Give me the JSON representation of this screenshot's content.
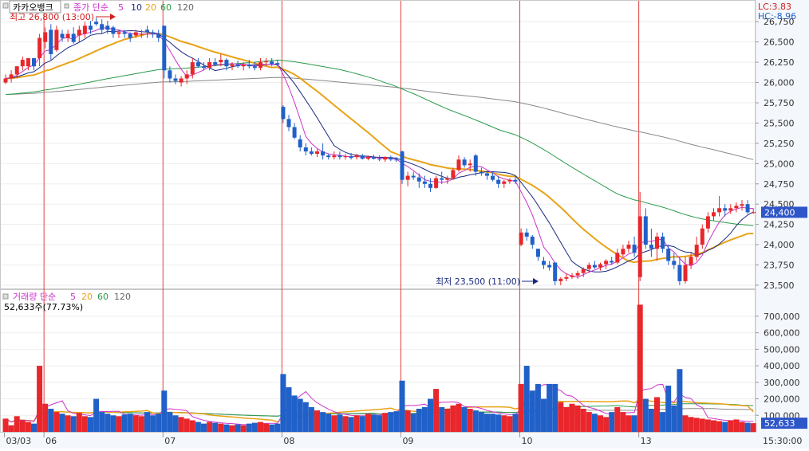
{
  "symbol_name": "카카오뱅크",
  "price_legend": {
    "label": "종가 단순",
    "periods": [
      "5",
      "10",
      "20",
      "60",
      "120"
    ]
  },
  "volume_legend": {
    "label": "거래량 단순",
    "periods": [
      "5",
      "20",
      "60",
      "120"
    ]
  },
  "volume_current_text": "52,633주(77.73%)",
  "lc_text": "LC:3.83",
  "hc_text": "HC:-8.96",
  "high_annotation": "최고 26,800 (13:00)",
  "low_annotation": "최저 23,500 (11:00)",
  "current_price_label": "24,400",
  "current_volume_label": "52,633",
  "time_label": "15:30:00",
  "colors": {
    "up": "#e8262b",
    "down": "#2060c8",
    "ma5": "#cc33cc",
    "ma10": "#1a2a80",
    "ma20": "#e8a317",
    "ma60": "#2a9a4a",
    "ma120": "#888888",
    "session_line": "#e04040",
    "badge": "#2e56c9"
  },
  "chart_data": [
    {
      "type": "candlestick",
      "title": "카카오뱅크",
      "y_ticks": [
        "23,500",
        "23,750",
        "24,000",
        "24,250",
        "24,500",
        "24,750",
        "25,000",
        "25,250",
        "25,500",
        "25,750",
        "26,000",
        "26,250",
        "26,500",
        "26,750"
      ],
      "ylim": [
        23480,
        26880
      ],
      "x_tick_labels": [
        "03/03",
        "06",
        "07",
        "08",
        "09",
        "10",
        "13"
      ],
      "session_start_index": [
        0,
        7,
        28,
        49,
        70,
        91,
        112
      ],
      "current_price": 24400,
      "candles": [
        [
          26000,
          26100,
          25980,
          26050
        ],
        [
          26050,
          26150,
          26000,
          26100
        ],
        [
          26100,
          26200,
          26050,
          26200
        ],
        [
          26200,
          26320,
          26150,
          26280
        ],
        [
          26200,
          26300,
          26150,
          26300
        ],
        [
          26300,
          26300,
          26150,
          26200
        ],
        [
          26300,
          26600,
          26200,
          26550
        ],
        [
          26500,
          26680,
          26420,
          26620
        ],
        [
          26650,
          26720,
          26280,
          26350
        ],
        [
          26400,
          26700,
          26380,
          26650
        ],
        [
          26600,
          26650,
          26500,
          26550
        ],
        [
          26550,
          26650,
          26500,
          26600
        ],
        [
          26600,
          26680,
          26480,
          26500
        ],
        [
          26580,
          26700,
          26500,
          26650
        ],
        [
          26600,
          26750,
          26550,
          26700
        ],
        [
          26700,
          26760,
          26600,
          26650
        ],
        [
          26750,
          26800,
          26700,
          26720
        ],
        [
          26720,
          26780,
          26600,
          26650
        ],
        [
          26700,
          26760,
          26600,
          26650
        ],
        [
          26680,
          26700,
          26550,
          26600
        ],
        [
          26600,
          26650,
          26550,
          26620
        ],
        [
          26620,
          26650,
          26550,
          26600
        ],
        [
          26600,
          26620,
          26500,
          26550
        ],
        [
          26580,
          26650,
          26550,
          26620
        ],
        [
          26600,
          26650,
          26550,
          26600
        ],
        [
          26650,
          26700,
          26550,
          26620
        ],
        [
          26620,
          26650,
          26550,
          26600
        ],
        [
          26600,
          26650,
          26500,
          26550
        ],
        [
          26700,
          26700,
          26050,
          26150
        ],
        [
          26150,
          26200,
          26000,
          26050
        ],
        [
          26050,
          26100,
          25980,
          26020
        ],
        [
          26000,
          26080,
          25950,
          26050
        ],
        [
          26050,
          26150,
          25980,
          26100
        ],
        [
          26100,
          26300,
          26050,
          26250
        ],
        [
          26250,
          26300,
          26180,
          26200
        ],
        [
          26200,
          26250,
          26150,
          26180
        ],
        [
          26180,
          26300,
          26150,
          26250
        ],
        [
          26250,
          26300,
          26200,
          26220
        ],
        [
          26250,
          26350,
          26200,
          26280
        ],
        [
          26280,
          26300,
          26150,
          26200
        ],
        [
          26200,
          26250,
          26150,
          26220
        ],
        [
          26220,
          26270,
          26180,
          26200
        ],
        [
          26200,
          26250,
          26150,
          26220
        ],
        [
          26220,
          26280,
          26170,
          26200
        ],
        [
          26200,
          26250,
          26150,
          26180
        ],
        [
          26180,
          26300,
          26150,
          26250
        ],
        [
          26250,
          26300,
          26200,
          26260
        ],
        [
          26260,
          26300,
          26200,
          26230
        ],
        [
          26240,
          26280,
          26200,
          26220
        ],
        [
          25700,
          25720,
          25500,
          25550
        ],
        [
          25550,
          25600,
          25400,
          25450
        ],
        [
          25450,
          25500,
          25300,
          25320
        ],
        [
          25300,
          25350,
          25150,
          25200
        ],
        [
          25200,
          25250,
          25100,
          25150
        ],
        [
          25150,
          25200,
          25100,
          25120
        ],
        [
          25120,
          25180,
          25080,
          25150
        ],
        [
          25150,
          25250,
          25050,
          25100
        ],
        [
          25100,
          25120,
          25050,
          25080
        ],
        [
          25080,
          25150,
          25050,
          25100
        ],
        [
          25100,
          25150,
          25050,
          25080
        ],
        [
          25080,
          25120,
          25050,
          25090
        ],
        [
          25090,
          25130,
          25050,
          25070
        ],
        [
          25080,
          25120,
          25050,
          25100
        ],
        [
          25100,
          25120,
          25050,
          25060
        ],
        [
          25060,
          25100,
          25040,
          25080
        ],
        [
          25080,
          25110,
          25050,
          25060
        ],
        [
          25060,
          25100,
          25030,
          25050
        ],
        [
          25050,
          25090,
          25020,
          25080
        ],
        [
          25080,
          25100,
          25030,
          25050
        ],
        [
          25050,
          25080,
          25020,
          25040
        ],
        [
          25150,
          25160,
          24750,
          24800
        ],
        [
          24800,
          24900,
          24720,
          24850
        ],
        [
          24850,
          24900,
          24800,
          24830
        ],
        [
          24830,
          24880,
          24700,
          24780
        ],
        [
          24780,
          24850,
          24700,
          24750
        ],
        [
          24750,
          24820,
          24650,
          24700
        ],
        [
          24700,
          24850,
          24690,
          24820
        ],
        [
          24820,
          24900,
          24750,
          24800
        ],
        [
          24800,
          24850,
          24750,
          24820
        ],
        [
          24820,
          24950,
          24800,
          24920
        ],
        [
          24920,
          25100,
          24900,
          25050
        ],
        [
          25050,
          25080,
          24950,
          24980
        ],
        [
          24980,
          25050,
          24900,
          25000
        ],
        [
          25100,
          25120,
          24850,
          24900
        ],
        [
          24900,
          24950,
          24850,
          24880
        ],
        [
          24880,
          24900,
          24800,
          24850
        ],
        [
          24850,
          24900,
          24780,
          24800
        ],
        [
          24800,
          24850,
          24700,
          24750
        ],
        [
          24750,
          24800,
          24700,
          24780
        ],
        [
          24780,
          24820,
          24750,
          24800
        ],
        [
          24800,
          24850,
          24750,
          24780
        ],
        [
          24000,
          24200,
          23980,
          24150
        ],
        [
          24150,
          24200,
          24050,
          24100
        ],
        [
          24100,
          24120,
          23950,
          24000
        ],
        [
          23950,
          23950,
          23800,
          23850
        ],
        [
          23800,
          23850,
          23700,
          23750
        ],
        [
          23750,
          23800,
          23680,
          23720
        ],
        [
          23780,
          23780,
          23500,
          23550
        ],
        [
          23550,
          23600,
          23500,
          23580
        ],
        [
          23580,
          23650,
          23550,
          23600
        ],
        [
          23600,
          23650,
          23580,
          23620
        ],
        [
          23620,
          23680,
          23580,
          23650
        ],
        [
          23650,
          23720,
          23600,
          23700
        ],
        [
          23700,
          23780,
          23650,
          23750
        ],
        [
          23750,
          23800,
          23700,
          23720
        ],
        [
          23720,
          23780,
          23680,
          23760
        ],
        [
          23760,
          23820,
          23700,
          23800
        ],
        [
          23800,
          23850,
          23750,
          23780
        ],
        [
          23780,
          23950,
          23760,
          23900
        ],
        [
          23880,
          24000,
          23850,
          23950
        ],
        [
          23950,
          24050,
          23900,
          24000
        ],
        [
          24000,
          24100,
          23850,
          23900
        ],
        [
          23600,
          24650,
          23550,
          24350
        ],
        [
          24350,
          24450,
          23950,
          24000
        ],
        [
          24000,
          24200,
          23850,
          23950
        ],
        [
          23950,
          24150,
          23800,
          24100
        ],
        [
          24100,
          24150,
          23900,
          23950
        ],
        [
          23950,
          24000,
          23750,
          23800
        ],
        [
          23800,
          23900,
          23700,
          23750
        ],
        [
          23750,
          23850,
          23500,
          23550
        ],
        [
          23550,
          23850,
          23520,
          23750
        ],
        [
          23750,
          23900,
          23700,
          23850
        ],
        [
          23850,
          24100,
          23800,
          24000
        ],
        [
          24000,
          24250,
          23950,
          24200
        ],
        [
          24200,
          24400,
          24150,
          24350
        ],
        [
          24350,
          24450,
          24300,
          24400
        ],
        [
          24400,
          24600,
          24350,
          24450
        ],
        [
          24450,
          24500,
          24350,
          24420
        ],
        [
          24420,
          24500,
          24380,
          24450
        ],
        [
          24450,
          24520,
          24400,
          24480
        ],
        [
          24480,
          24550,
          24420,
          24500
        ],
        [
          24500,
          24550,
          24380,
          24400
        ],
        [
          24400,
          24450,
          24380,
          24400
        ]
      ]
    },
    {
      "type": "bar",
      "title": "거래량",
      "y_ticks": [
        "100,000",
        "200,000",
        "300,000",
        "400,000",
        "500,000",
        "600,000",
        "700,000"
      ],
      "ylim": [
        0,
        820000
      ],
      "current_volume": 52633,
      "volumes": [
        80000,
        40000,
        95000,
        70000,
        60000,
        50000,
        400000,
        170000,
        140000,
        120000,
        110000,
        100000,
        95000,
        115000,
        95000,
        90000,
        200000,
        120000,
        110000,
        100000,
        95000,
        105000,
        110000,
        100000,
        95000,
        120000,
        100000,
        110000,
        250000,
        120000,
        100000,
        90000,
        80000,
        70000,
        60000,
        50000,
        60000,
        55000,
        50000,
        45000,
        40000,
        45000,
        40000,
        50000,
        55000,
        60000,
        50000,
        45000,
        50000,
        350000,
        270000,
        220000,
        200000,
        180000,
        150000,
        130000,
        120000,
        110000,
        100000,
        105000,
        95000,
        90000,
        100000,
        95000,
        110000,
        105000,
        100000,
        115000,
        120000,
        125000,
        310000,
        130000,
        110000,
        140000,
        150000,
        200000,
        260000,
        150000,
        140000,
        160000,
        170000,
        150000,
        140000,
        130000,
        120000,
        110000,
        110000,
        105000,
        100000,
        95000,
        110000,
        290000,
        400000,
        250000,
        290000,
        200000,
        290000,
        290000,
        180000,
        150000,
        170000,
        160000,
        140000,
        120000,
        110000,
        100000,
        90000,
        120000,
        150000,
        120000,
        100000,
        100000,
        770000,
        200000,
        140000,
        210000,
        120000,
        280000,
        160000,
        380000,
        100000,
        90000,
        85000,
        80000,
        75000,
        70000,
        65000,
        60000,
        70000,
        75000,
        60000,
        55000,
        52633
      ]
    }
  ]
}
